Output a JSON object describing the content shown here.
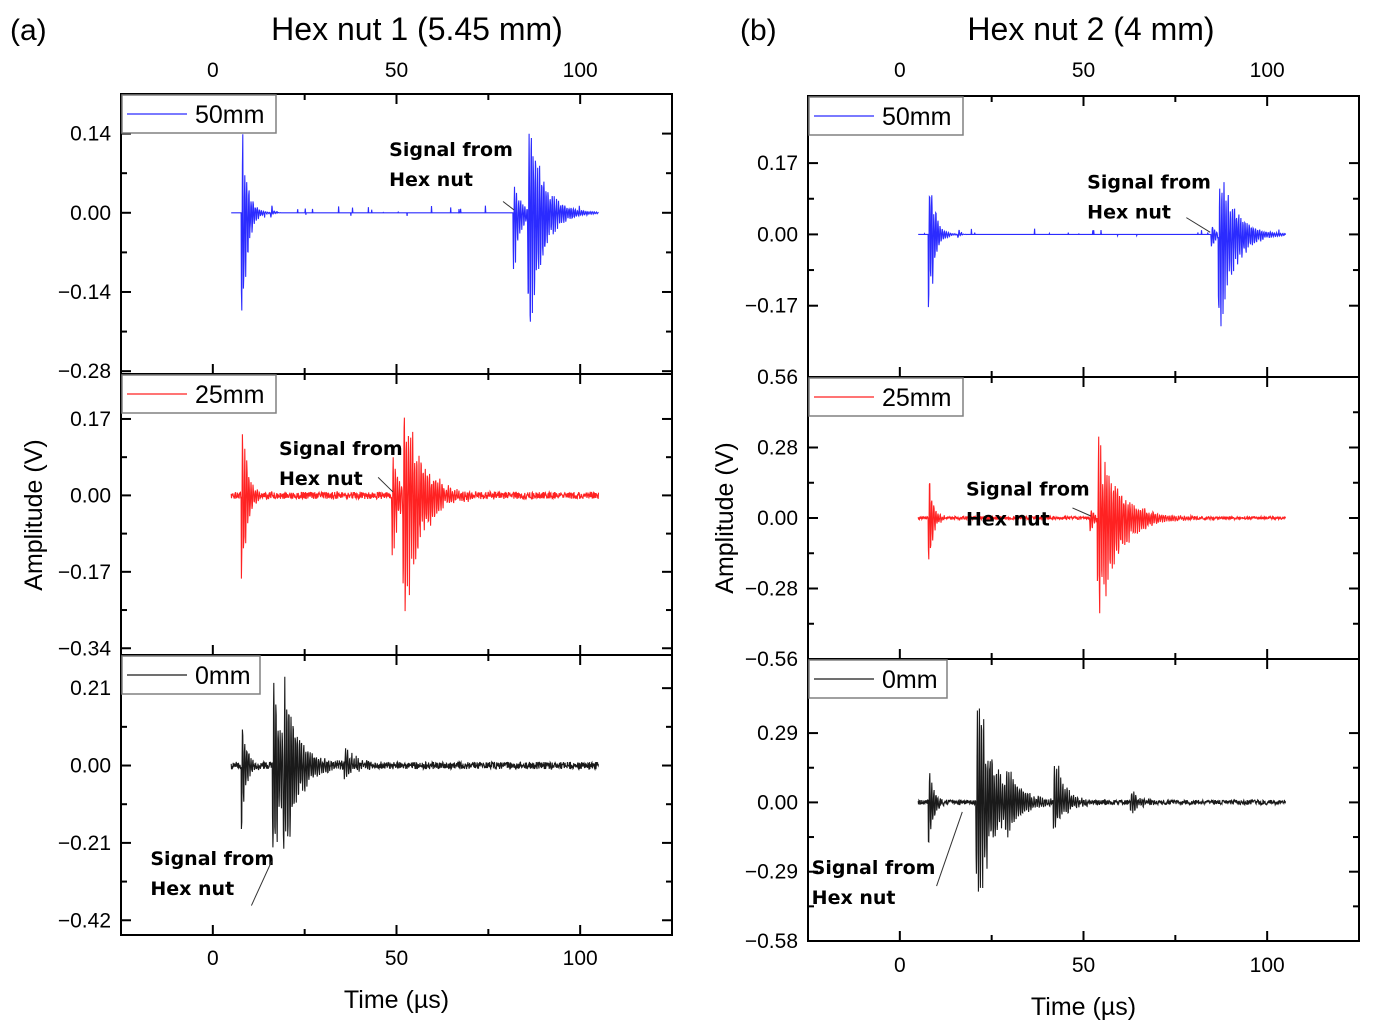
{
  "figure": {
    "panels": [
      {
        "id": "a",
        "label": "(a)",
        "title": "Hex nut 1 (5.45 mm)",
        "xlabel": "Time (µs)",
        "ylabel": "Amplitude (V)",
        "top_tick_labels": [
          "0",
          "50",
          "100"
        ],
        "bottom_tick_labels": [
          "0",
          "50",
          "100"
        ]
      },
      {
        "id": "b",
        "label": "(b)",
        "title": "Hex nut 2 (4 mm)",
        "xlabel": "Time (µs)",
        "ylabel": "Amplitude (V)",
        "top_tick_labels": [
          "0",
          "50",
          "100"
        ],
        "bottom_tick_labels": [
          "0",
          "50",
          "100"
        ]
      }
    ],
    "annotation_text": [
      "Signal from",
      "Hex nut"
    ]
  },
  "chart_data": [
    {
      "type": "line",
      "panel": "a",
      "title": "Hex nut 1 (5.45 mm)",
      "xlabel": "Time (µs)",
      "ylabel": "Amplitude (V)",
      "xlim": [
        -25,
        125
      ],
      "xticks": [
        0,
        50,
        100
      ],
      "grid": false,
      "legend_placement": "top-left",
      "subplots": [
        {
          "name": "50mm",
          "color": "#2b2bff",
          "yticks": [
            "0.14",
            "0.00",
            "-0.14",
            "-0.28"
          ],
          "ytick_values": [
            0.14,
            0.0,
            -0.14,
            -0.28
          ],
          "ylim": [
            -0.285,
            0.21
          ],
          "x_range": [
            5,
            105
          ],
          "noise": 0.0,
          "events": [
            {
              "t": 8,
              "peak": 0.16,
              "trough": -0.23,
              "decay": 1.5
            },
            {
              "t": 16,
              "peak": 0.02,
              "trough": -0.01,
              "decay": 0.5
            },
            {
              "t": 82,
              "peak": 0.06,
              "trough": -0.12,
              "decay": 2
            },
            {
              "t": 86,
              "peak": 0.175,
              "trough": -0.23,
              "decay": 4
            }
          ],
          "annotation": {
            "text_x": 48,
            "text_y": 0.1,
            "arrow_from": [
              79,
              0.02
            ],
            "arrow_to": [
              82,
              0.005
            ]
          }
        },
        {
          "name": "25mm",
          "color": "#ff2222",
          "yticks": [
            "0.17",
            "0.00",
            "-0.17",
            "-0.34"
          ],
          "ytick_values": [
            0.17,
            0.0,
            -0.17,
            -0.34
          ],
          "ylim": [
            -0.355,
            0.27
          ],
          "x_range": [
            5,
            105
          ],
          "noise": 0.008,
          "events": [
            {
              "t": 8,
              "peak": 0.18,
              "trough": -0.23,
              "decay": 1.5
            },
            {
              "t": 49,
              "peak": 0.12,
              "trough": -0.19,
              "decay": 1.5
            },
            {
              "t": 52,
              "peak": 0.23,
              "trough": -0.3,
              "decay": 5
            }
          ],
          "annotation": {
            "text_x": 18,
            "text_y": 0.09,
            "arrow_from": [
              45,
              0.04
            ],
            "arrow_to": [
              49,
              0.008
            ]
          }
        },
        {
          "name": "0mm",
          "color": "#1a1a1a",
          "yticks": [
            "0.21",
            "0.00",
            "-0.21",
            "-0.42"
          ],
          "ytick_values": [
            0.21,
            0.0,
            -0.21,
            -0.42
          ],
          "ylim": [
            -0.46,
            0.3
          ],
          "x_range": [
            5,
            105
          ],
          "noise": 0.01,
          "events": [
            {
              "t": 8,
              "peak": 0.16,
              "trough": -0.22,
              "decay": 1.2
            },
            {
              "t": 16.5,
              "peak": 0.27,
              "trough": -0.36,
              "decay": 3
            },
            {
              "t": 19.5,
              "peak": 0.24,
              "trough": -0.28,
              "decay": 4
            },
            {
              "t": 36,
              "peak": 0.06,
              "trough": -0.04,
              "decay": 3
            }
          ],
          "annotation": {
            "text_x": -17,
            "text_y": -0.27,
            "arrow_from": [
              10.5,
              -0.38
            ],
            "arrow_to": [
              16,
              -0.26
            ]
          }
        }
      ]
    },
    {
      "type": "line",
      "panel": "b",
      "title": "Hex nut 2 (4 mm)",
      "xlabel": "Time (µs)",
      "ylabel": "Amplitude (V)",
      "xlim": [
        -25,
        125
      ],
      "xticks": [
        0,
        50,
        100
      ],
      "grid": false,
      "legend_placement": "top-left",
      "subplots": [
        {
          "name": "50mm",
          "color": "#2b2bff",
          "yticks": [
            "0.17",
            "0.00",
            "-0.17"
          ],
          "ytick_values": [
            0.17,
            0.0,
            -0.17
          ],
          "ylim": [
            -0.34,
            0.33
          ],
          "x_range": [
            5,
            105
          ],
          "noise": 0.0,
          "events": [
            {
              "t": 8,
              "peak": 0.18,
              "trough": -0.23,
              "decay": 1.5
            },
            {
              "t": 16,
              "peak": 0.015,
              "trough": -0.01,
              "decay": 0.5
            },
            {
              "t": 85,
              "peak": 0.03,
              "trough": -0.05,
              "decay": 1
            },
            {
              "t": 87,
              "peak": 0.2,
              "trough": -0.28,
              "decay": 4
            }
          ],
          "annotation": {
            "text_x": 51,
            "text_y": 0.11,
            "arrow_from": [
              78,
              0.04
            ],
            "arrow_to": [
              84.5,
              0.005
            ]
          }
        },
        {
          "name": "25mm",
          "color": "#ff2222",
          "yticks": [
            "0.56",
            "0.28",
            "0.00",
            "-0.28",
            "-0.56"
          ],
          "ytick_values": [
            0.56,
            0.28,
            0.0,
            -0.28,
            -0.56
          ],
          "ylim": [
            -0.56,
            0.56
          ],
          "x_range": [
            5,
            105
          ],
          "noise": 0.006,
          "events": [
            {
              "t": 8,
              "peak": 0.18,
              "trough": -0.23,
              "decay": 1.2
            },
            {
              "t": 52,
              "peak": 0.05,
              "trough": -0.07,
              "decay": 1
            },
            {
              "t": 54,
              "peak": 0.35,
              "trough": -0.47,
              "decay": 5.5
            }
          ],
          "annotation": {
            "text_x": 18,
            "text_y": 0.09,
            "arrow_from": [
              47,
              0.04
            ],
            "arrow_to": [
              52,
              0.008
            ]
          }
        },
        {
          "name": "0mm",
          "color": "#1a1a1a",
          "yticks": [
            "0.29",
            "0.00",
            "-0.29",
            "-0.58"
          ],
          "ytick_values": [
            0.29,
            0.0,
            -0.29,
            -0.58
          ],
          "ylim": [
            -0.58,
            0.6
          ],
          "x_range": [
            5,
            105
          ],
          "noise": 0.01,
          "events": [
            {
              "t": 8,
              "peak": 0.17,
              "trough": -0.22,
              "decay": 1.2
            },
            {
              "t": 21,
              "peak": 0.5,
              "trough": -0.5,
              "decay": 5
            },
            {
              "t": 29,
              "peak": 0.1,
              "trough": -0.08,
              "decay": 3
            },
            {
              "t": 42,
              "peak": 0.22,
              "trough": -0.16,
              "decay": 3
            },
            {
              "t": 63,
              "peak": 0.05,
              "trough": -0.05,
              "decay": 2.5
            }
          ],
          "annotation": {
            "text_x": -24,
            "text_y": -0.3,
            "arrow_from": [
              10,
              -0.35
            ],
            "arrow_to": [
              17,
              -0.04
            ]
          }
        }
      ]
    }
  ]
}
